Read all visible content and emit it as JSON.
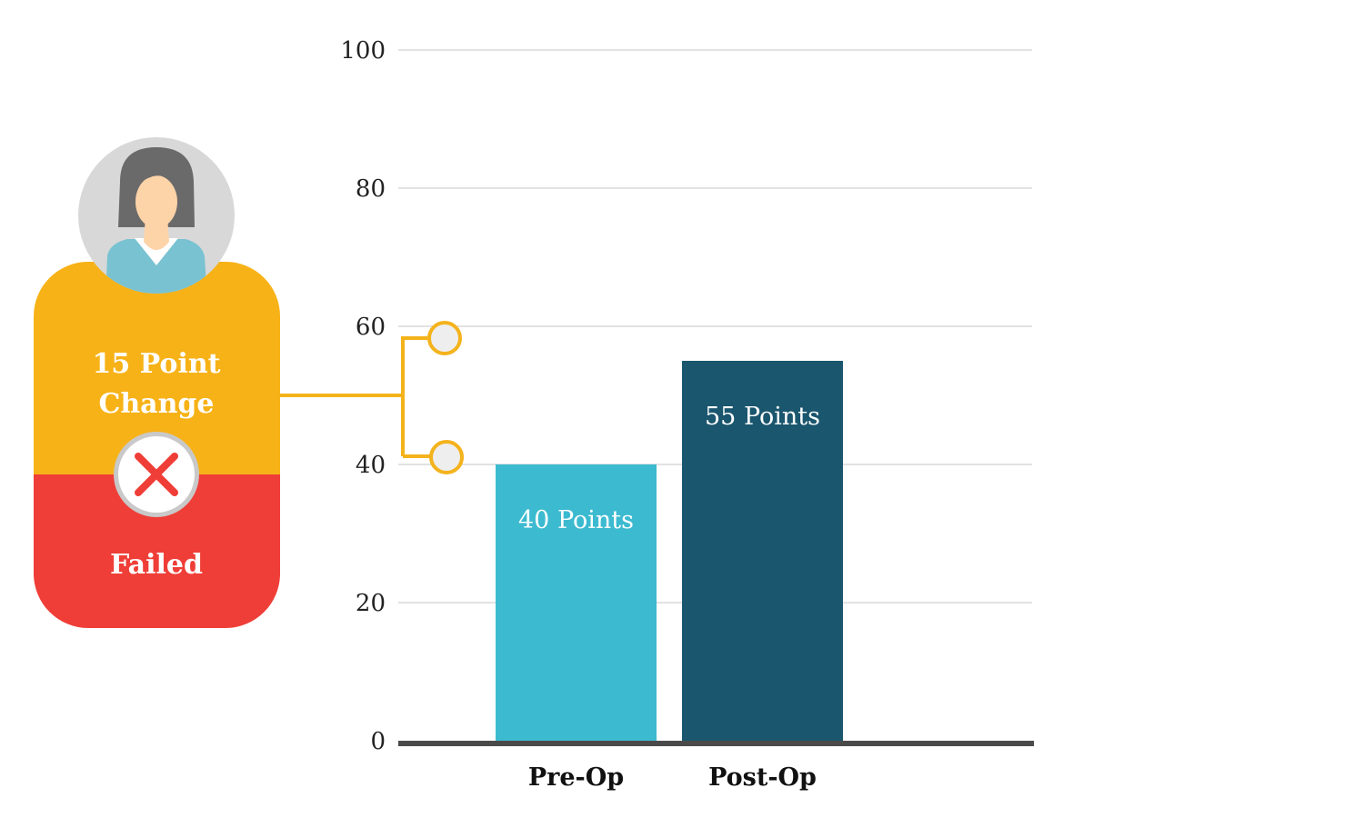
{
  "chart_data": {
    "type": "bar",
    "categories": [
      "Pre-Op",
      "Post-Op"
    ],
    "values": [
      40,
      55
    ],
    "data_labels": [
      "40 Points",
      "55 Points"
    ],
    "y_ticks": [
      0,
      20,
      40,
      60,
      80,
      100
    ],
    "ylim": [
      0,
      100
    ],
    "grid": true,
    "colors": [
      "#3cbad0",
      "#1a566e"
    ]
  },
  "status_card": {
    "change_line1": "15 Point",
    "change_line2": "Change",
    "result": "Failed",
    "top_color": "#f7b217",
    "bottom_color": "#ef3e37",
    "icons": {
      "avatar": "woman-avatar-icon",
      "status": "x-mark-icon"
    }
  },
  "connector_color": "#f4b31c"
}
